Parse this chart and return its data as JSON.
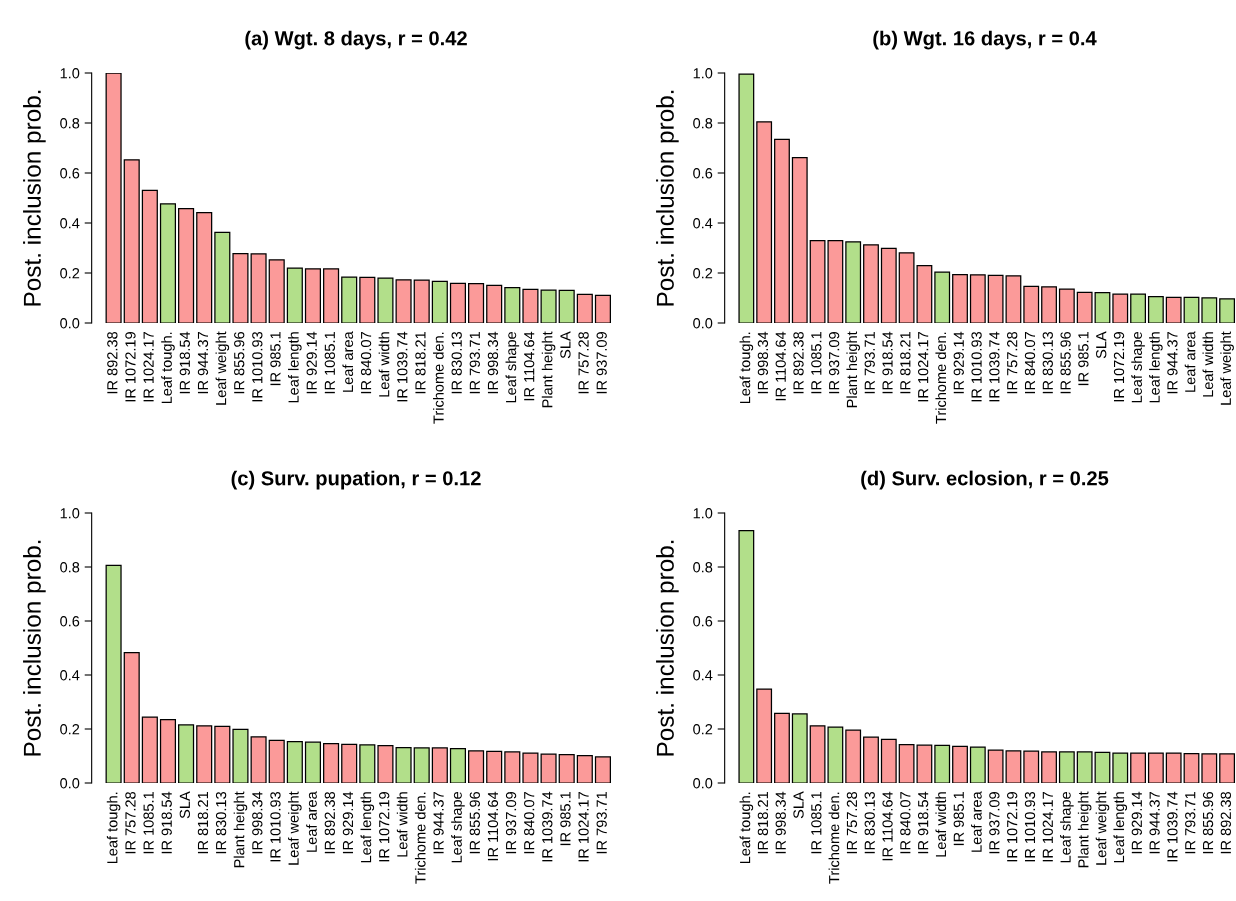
{
  "chart_data": [
    {
      "type": "bar",
      "title": "(a) Wgt. 8 days, r = 0.42",
      "ylabel": "Post. inclusion prob.",
      "categories": [
        "IR 892.38",
        "IR 1072.19",
        "IR 1024.17",
        "Leaf tough.",
        "IR 918.54",
        "IR 944.37",
        "Leaf weight",
        "IR 855.96",
        "IR 1010.93",
        "IR 985.1",
        "Leaf length",
        "IR 929.14",
        "IR 1085.1",
        "Leaf area",
        "IR 840.07",
        "Leaf width",
        "IR 1039.74",
        "IR 818.21",
        "Trichome den.",
        "IR 830.13",
        "IR 793.71",
        "IR 998.34",
        "Leaf shape",
        "IR 1104.64",
        "Plant height",
        "SLA",
        "IR 757.28",
        "IR 937.09"
      ],
      "values": [
        1.0,
        0.653,
        0.531,
        0.477,
        0.458,
        0.442,
        0.363,
        0.278,
        0.277,
        0.253,
        0.22,
        0.217,
        0.217,
        0.184,
        0.183,
        0.18,
        0.173,
        0.172,
        0.167,
        0.159,
        0.158,
        0.151,
        0.142,
        0.135,
        0.132,
        0.131,
        0.115,
        0.111
      ],
      "colors": [
        "#fb9a99",
        "#fb9a99",
        "#fb9a99",
        "#b2df8a",
        "#fb9a99",
        "#fb9a99",
        "#b2df8a",
        "#fb9a99",
        "#fb9a99",
        "#fb9a99",
        "#b2df8a",
        "#fb9a99",
        "#fb9a99",
        "#b2df8a",
        "#fb9a99",
        "#b2df8a",
        "#fb9a99",
        "#fb9a99",
        "#b2df8a",
        "#fb9a99",
        "#fb9a99",
        "#fb9a99",
        "#b2df8a",
        "#fb9a99",
        "#b2df8a",
        "#b2df8a",
        "#fb9a99",
        "#fb9a99"
      ],
      "ylim": [
        0,
        1
      ],
      "yticks": [
        {
          "value": 0,
          "label": "0.0"
        },
        {
          "value": 0.2,
          "label": "0.2"
        },
        {
          "value": 0.4,
          "label": "0.4"
        },
        {
          "value": 0.6,
          "label": "0.6"
        },
        {
          "value": 0.8,
          "label": "0.8"
        },
        {
          "value": 1,
          "label": "1.0"
        }
      ]
    },
    {
      "type": "bar",
      "title": "(b) Wgt. 16 days, r = 0.4",
      "ylabel": "Post. inclusion prob.",
      "categories": [
        "Leaf tough.",
        "IR 998.34",
        "IR 1104.64",
        "IR 892.38",
        "IR 1085.1",
        "IR 937.09",
        "Plant height",
        "IR 793.71",
        "IR 918.54",
        "IR 818.21",
        "IR 1024.17",
        "Trichome den.",
        "IR 929.14",
        "IR 1010.93",
        "IR 1039.74",
        "IR 757.28",
        "IR 840.07",
        "IR 830.13",
        "IR 855.96",
        "IR 985.1",
        "SLA",
        "IR 1072.19",
        "Leaf shape",
        "Leaf length",
        "IR 944.37",
        "Leaf area",
        "Leaf width",
        "Leaf weight"
      ],
      "values": [
        0.996,
        0.805,
        0.735,
        0.662,
        0.33,
        0.33,
        0.325,
        0.313,
        0.299,
        0.281,
        0.23,
        0.204,
        0.194,
        0.193,
        0.191,
        0.189,
        0.147,
        0.145,
        0.136,
        0.123,
        0.122,
        0.116,
        0.116,
        0.106,
        0.103,
        0.103,
        0.101,
        0.097
      ],
      "colors": [
        "#b2df8a",
        "#fb9a99",
        "#fb9a99",
        "#fb9a99",
        "#fb9a99",
        "#fb9a99",
        "#b2df8a",
        "#fb9a99",
        "#fb9a99",
        "#fb9a99",
        "#fb9a99",
        "#b2df8a",
        "#fb9a99",
        "#fb9a99",
        "#fb9a99",
        "#fb9a99",
        "#fb9a99",
        "#fb9a99",
        "#fb9a99",
        "#fb9a99",
        "#b2df8a",
        "#fb9a99",
        "#b2df8a",
        "#b2df8a",
        "#fb9a99",
        "#b2df8a",
        "#b2df8a",
        "#b2df8a"
      ],
      "ylim": [
        0,
        1
      ],
      "yticks": [
        {
          "value": 0,
          "label": "0.0"
        },
        {
          "value": 0.2,
          "label": "0.2"
        },
        {
          "value": 0.4,
          "label": "0.4"
        },
        {
          "value": 0.6,
          "label": "0.6"
        },
        {
          "value": 0.8,
          "label": "0.8"
        },
        {
          "value": 1,
          "label": "1.0"
        }
      ]
    },
    {
      "type": "bar",
      "title": "(c) Surv. pupation, r = 0.12",
      "ylabel": "Post. inclusion prob.",
      "categories": [
        "Leaf tough.",
        "IR 757.28",
        "IR 1085.1",
        "IR 918.54",
        "SLA",
        "IR 818.21",
        "IR 830.13",
        "Plant height",
        "IR 998.34",
        "IR 1010.93",
        "Leaf weight",
        "Leaf area",
        "IR 892.38",
        "IR 929.14",
        "Leaf length",
        "IR 1072.19",
        "Leaf width",
        "Trichome den.",
        "IR 944.37",
        "Leaf shape",
        "IR 855.96",
        "IR 1104.64",
        "IR 937.09",
        "IR 840.07",
        "IR 1039.74",
        "IR 985.1",
        "IR 1024.17",
        "IR 793.71"
      ],
      "values": [
        0.806,
        0.483,
        0.244,
        0.235,
        0.215,
        0.212,
        0.21,
        0.199,
        0.171,
        0.158,
        0.153,
        0.151,
        0.146,
        0.143,
        0.141,
        0.138,
        0.131,
        0.13,
        0.13,
        0.127,
        0.119,
        0.117,
        0.115,
        0.111,
        0.107,
        0.105,
        0.101,
        0.097
      ],
      "colors": [
        "#b2df8a",
        "#fb9a99",
        "#fb9a99",
        "#fb9a99",
        "#b2df8a",
        "#fb9a99",
        "#fb9a99",
        "#b2df8a",
        "#fb9a99",
        "#fb9a99",
        "#b2df8a",
        "#b2df8a",
        "#fb9a99",
        "#fb9a99",
        "#b2df8a",
        "#fb9a99",
        "#b2df8a",
        "#b2df8a",
        "#fb9a99",
        "#b2df8a",
        "#fb9a99",
        "#fb9a99",
        "#fb9a99",
        "#fb9a99",
        "#fb9a99",
        "#fb9a99",
        "#fb9a99",
        "#fb9a99"
      ],
      "ylim": [
        0,
        1
      ],
      "yticks": [
        {
          "value": 0,
          "label": "0.0"
        },
        {
          "value": 0.2,
          "label": "0.2"
        },
        {
          "value": 0.4,
          "label": "0.4"
        },
        {
          "value": 0.6,
          "label": "0.6"
        },
        {
          "value": 0.8,
          "label": "0.8"
        },
        {
          "value": 1,
          "label": "1.0"
        }
      ]
    },
    {
      "type": "bar",
      "title": "(d) Surv. eclosion, r = 0.25",
      "ylabel": "Post. inclusion prob.",
      "categories": [
        "Leaf tough.",
        "IR 818.21",
        "IR 998.34",
        "SLA",
        "IR 1085.1",
        "Trichome den.",
        "IR 757.28",
        "IR 830.13",
        "IR 1104.64",
        "IR 840.07",
        "IR 918.54",
        "Leaf width",
        "IR 985.1",
        "Leaf area",
        "IR 937.09",
        "IR 1072.19",
        "IR 1010.93",
        "IR 1024.17",
        "Leaf shape",
        "Plant height",
        "Leaf weight",
        "Leaf length",
        "IR 929.14",
        "IR 944.37",
        "IR 1039.74",
        "IR 793.71",
        "IR 855.96",
        "IR 892.38"
      ],
      "values": [
        0.935,
        0.348,
        0.258,
        0.256,
        0.212,
        0.207,
        0.196,
        0.17,
        0.162,
        0.142,
        0.14,
        0.139,
        0.136,
        0.133,
        0.122,
        0.119,
        0.118,
        0.115,
        0.115,
        0.115,
        0.113,
        0.111,
        0.111,
        0.111,
        0.111,
        0.109,
        0.108,
        0.108
      ],
      "colors": [
        "#b2df8a",
        "#fb9a99",
        "#fb9a99",
        "#b2df8a",
        "#fb9a99",
        "#b2df8a",
        "#fb9a99",
        "#fb9a99",
        "#fb9a99",
        "#fb9a99",
        "#fb9a99",
        "#b2df8a",
        "#fb9a99",
        "#b2df8a",
        "#fb9a99",
        "#fb9a99",
        "#fb9a99",
        "#fb9a99",
        "#b2df8a",
        "#b2df8a",
        "#b2df8a",
        "#b2df8a",
        "#fb9a99",
        "#fb9a99",
        "#fb9a99",
        "#fb9a99",
        "#fb9a99",
        "#fb9a99"
      ],
      "ylim": [
        0,
        1
      ],
      "yticks": [
        {
          "value": 0,
          "label": "0.0"
        },
        {
          "value": 0.2,
          "label": "0.2"
        },
        {
          "value": 0.4,
          "label": "0.4"
        },
        {
          "value": 0.6,
          "label": "0.6"
        },
        {
          "value": 0.8,
          "label": "0.8"
        },
        {
          "value": 1,
          "label": "1.0"
        }
      ]
    }
  ]
}
